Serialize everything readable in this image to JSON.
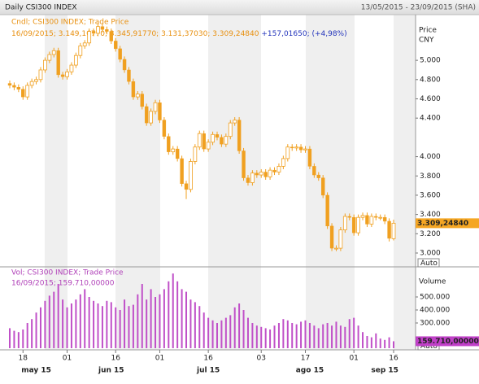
{
  "header": {
    "title": "Daily CSI300 INDEX",
    "range": "13/05/2015 - 23/09/2015 (SHA)"
  },
  "chart_data": [
    {
      "type": "candlestick",
      "legend": "Cndl; CSI300 INDEX; Trade Price",
      "last_quote": "16/09/2015; 3.149,16770; 3.345,91770; 3.131,37030; 3.309,24840",
      "last_change": "+157,01650; (+4,98%)",
      "y_label": [
        "Price",
        "CNY"
      ],
      "scale_mode": "Auto",
      "color": "#f0a020",
      "ylim": [
        2865,
        5440
      ],
      "yticks": [
        {
          "value": 3000,
          "label": "3.000"
        },
        {
          "value": 3200,
          "label": "3.200"
        },
        {
          "value": 3400,
          "label": "3.400"
        },
        {
          "value": 3600,
          "label": "3.600"
        },
        {
          "value": 3800,
          "label": "3.800"
        },
        {
          "value": 4000,
          "label": "4.000"
        },
        {
          "value": 4400,
          "label": "4.400"
        },
        {
          "value": 4600,
          "label": "4.600"
        },
        {
          "value": 4800,
          "label": "4.800"
        },
        {
          "value": 5000,
          "label": "5.000"
        }
      ],
      "current_price": {
        "value": 3309.2484,
        "label": "3.309,24840"
      },
      "open": [
        4760,
        4740,
        4720,
        4700,
        4620,
        4740,
        4780,
        4800,
        4900,
        5000,
        5060,
        5100,
        4850,
        4830,
        4880,
        4950,
        5050,
        5150,
        5180,
        5300,
        5280,
        5350,
        5320,
        5300,
        5200,
        5120,
        5010,
        4900,
        4780,
        4620,
        4650,
        4520,
        4350,
        4470,
        4560,
        4380,
        4210,
        4050,
        4080,
        3980,
        3720,
        3660,
        3950,
        4100,
        4240,
        4080,
        4150,
        4230,
        4200,
        4130,
        4210,
        4350,
        4380,
        4060,
        3780,
        3730,
        3830,
        3810,
        3840,
        3790,
        3860,
        3840,
        3900,
        3980,
        4100,
        4090,
        4100,
        4070,
        4080,
        3900,
        3810,
        3780,
        3600,
        3280,
        3050,
        3050,
        3240,
        3380,
        3370,
        3210,
        3370,
        3390,
        3300,
        3380,
        3370,
        3370,
        3330,
        3149.1677
      ],
      "high": [
        4790,
        4770,
        4750,
        4730,
        4770,
        4810,
        4830,
        4930,
        5030,
        5090,
        5130,
        5130,
        4880,
        4910,
        4980,
        5080,
        5180,
        5210,
        5330,
        5330,
        5380,
        5380,
        5350,
        5330,
        5230,
        5150,
        5040,
        4930,
        4810,
        4680,
        4680,
        4550,
        4500,
        4590,
        4590,
        4410,
        4240,
        4110,
        4110,
        4010,
        3750,
        3980,
        4130,
        4270,
        4270,
        4180,
        4260,
        4260,
        4230,
        4240,
        4380,
        4410,
        4410,
        4090,
        3810,
        3860,
        3860,
        3870,
        3870,
        3890,
        3890,
        3930,
        4010,
        4130,
        4130,
        4130,
        4130,
        4110,
        4110,
        3930,
        3840,
        3810,
        3630,
        3310,
        3080,
        3270,
        3410,
        3410,
        3400,
        3400,
        3420,
        3420,
        3410,
        3410,
        3400,
        3400,
        3360,
        3345.9177
      ],
      "low": [
        4710,
        4690,
        4670,
        4590,
        4590,
        4710,
        4750,
        4770,
        4870,
        4970,
        5030,
        4820,
        4800,
        4800,
        4850,
        4920,
        5020,
        5120,
        5150,
        5250,
        5250,
        5290,
        5270,
        5170,
        5090,
        4980,
        4870,
        4750,
        4590,
        4590,
        4490,
        4320,
        4320,
        4440,
        4350,
        4180,
        4020,
        4020,
        3950,
        3690,
        3560,
        3630,
        3920,
        4070,
        4050,
        4050,
        4120,
        4170,
        4100,
        4100,
        4180,
        4320,
        4030,
        3750,
        3700,
        3700,
        3780,
        3780,
        3760,
        3760,
        3810,
        3810,
        3870,
        3950,
        4060,
        4060,
        4040,
        4040,
        3870,
        3780,
        3750,
        3570,
        3250,
        3020,
        3020,
        3020,
        3210,
        3340,
        3180,
        3180,
        3340,
        3270,
        3270,
        3340,
        3340,
        3300,
        3120,
        3131.3703
      ],
      "close": [
        4740,
        4720,
        4700,
        4620,
        4740,
        4780,
        4800,
        4900,
        5000,
        5060,
        5100,
        4850,
        4830,
        4880,
        4950,
        5050,
        5150,
        5180,
        5300,
        5280,
        5350,
        5320,
        5300,
        5200,
        5120,
        5010,
        4900,
        4780,
        4620,
        4650,
        4520,
        4350,
        4470,
        4560,
        4380,
        4210,
        4050,
        4080,
        3980,
        3720,
        3660,
        3950,
        4100,
        4240,
        4080,
        4150,
        4230,
        4200,
        4130,
        4210,
        4350,
        4380,
        4060,
        3780,
        3730,
        3830,
        3810,
        3840,
        3790,
        3860,
        3840,
        3900,
        3980,
        4100,
        4090,
        4100,
        4070,
        4080,
        3900,
        3810,
        3780,
        3600,
        3280,
        3050,
        3050,
        3240,
        3380,
        3370,
        3210,
        3370,
        3390,
        3300,
        3380,
        3370,
        3370,
        3330,
        3152.23,
        3309.2484
      ]
    },
    {
      "type": "bar",
      "legend": "Vol; CSI300 INDEX; Trade Price",
      "last_quote": "16/09/2015; 159.710,00000",
      "y_label": "Volume",
      "scale_mode": "Auto",
      "color": "#c050c8",
      "ylim": [
        106250,
        718750
      ],
      "yticks": [
        {
          "value": 300000,
          "label": "300.000"
        },
        {
          "value": 400000,
          "label": "400.000"
        },
        {
          "value": 500000,
          "label": "500.000"
        }
      ],
      "current_volume": {
        "value": 159710,
        "label": "159.710,00000"
      },
      "values": [
        260000,
        240000,
        230000,
        250000,
        300000,
        330000,
        380000,
        420000,
        470000,
        510000,
        540000,
        600000,
        480000,
        420000,
        450000,
        480000,
        520000,
        560000,
        500000,
        470000,
        450000,
        430000,
        470000,
        460000,
        420000,
        400000,
        480000,
        430000,
        440000,
        520000,
        600000,
        480000,
        560000,
        500000,
        520000,
        560000,
        620000,
        680000,
        620000,
        560000,
        540000,
        480000,
        460000,
        430000,
        380000,
        340000,
        320000,
        300000,
        320000,
        340000,
        360000,
        420000,
        450000,
        400000,
        340000,
        300000,
        280000,
        270000,
        260000,
        250000,
        280000,
        300000,
        330000,
        320000,
        300000,
        290000,
        310000,
        320000,
        300000,
        280000,
        260000,
        290000,
        300000,
        280000,
        310000,
        280000,
        270000,
        330000,
        340000,
        280000,
        230000,
        200000,
        190000,
        220000,
        180000,
        170000,
        190000,
        159710
      ],
      "xticks": [
        {
          "value": 3,
          "label": "18"
        },
        {
          "value": 13,
          "label": "01"
        },
        {
          "value": 24,
          "label": "16"
        },
        {
          "value": 34,
          "label": "01"
        },
        {
          "value": 45,
          "label": "16"
        },
        {
          "value": 57,
          "label": "03"
        },
        {
          "value": 67,
          "label": "17"
        },
        {
          "value": 78,
          "label": "01"
        },
        {
          "value": 87,
          "label": "16"
        }
      ],
      "months": [
        {
          "value": 6,
          "label": "may 15"
        },
        {
          "value": 23,
          "label": "jun 15"
        },
        {
          "value": 45,
          "label": "jul 15"
        },
        {
          "value": 68,
          "label": "ago 15"
        },
        {
          "value": 85,
          "label": "sep 15"
        }
      ]
    }
  ]
}
